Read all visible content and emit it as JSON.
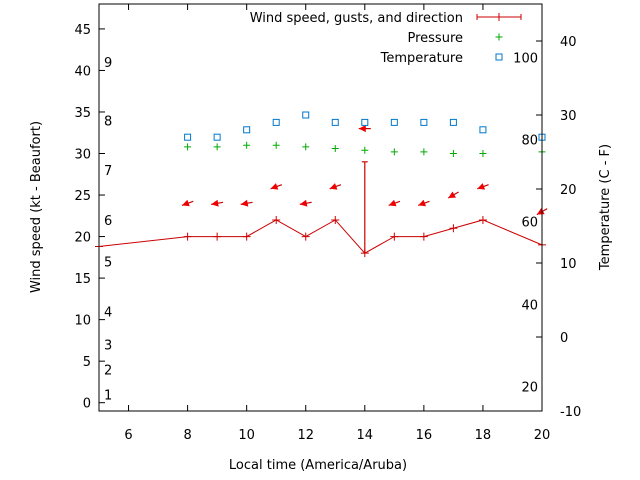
{
  "chart_data": {
    "type": "line",
    "xlabel": "Local time (America/Aruba)",
    "ylabel_left": "Wind speed (kt - Beaufort)",
    "ylabel_right": "Temperature (C - F)",
    "xlim": [
      5,
      20
    ],
    "ylim": [
      -1,
      48
    ],
    "x_ticks": [
      6,
      8,
      10,
      12,
      14,
      16,
      18,
      20
    ],
    "y_ticks": [
      0,
      5,
      10,
      15,
      20,
      25,
      30,
      35,
      40,
      45
    ],
    "y2_range_c": [
      -10,
      45
    ],
    "y2_ticks_c": [
      -10,
      0,
      10,
      20,
      30,
      40
    ],
    "beaufort_labels": [
      {
        "label": "1",
        "kt": 1
      },
      {
        "label": "2",
        "kt": 4
      },
      {
        "label": "3",
        "kt": 7
      },
      {
        "label": "4",
        "kt": 11
      },
      {
        "label": "5",
        "kt": 17
      },
      {
        "label": "6",
        "kt": 22
      },
      {
        "label": "7",
        "kt": 28
      },
      {
        "label": "8",
        "kt": 34
      },
      {
        "label": "9",
        "kt": 41
      }
    ],
    "fahrenheit_labels": [
      {
        "label": "20",
        "c": -6.7
      },
      {
        "label": "40",
        "c": 4.4
      },
      {
        "label": "60",
        "c": 15.6
      },
      {
        "label": "80",
        "c": 26.7
      },
      {
        "label": "100",
        "c": 37.8
      }
    ],
    "legend": [
      {
        "name": "Wind speed, gusts, and direction",
        "color": "#cc0000",
        "symbol": "errorline"
      },
      {
        "name": "Pressure",
        "color": "#00aa00",
        "symbol": "plus"
      },
      {
        "name": "Temperature",
        "color": "#0077cc",
        "symbol": "square"
      }
    ],
    "wind": {
      "x": [
        5,
        8,
        9,
        10,
        11,
        12,
        13,
        14,
        15,
        16,
        17,
        18,
        20
      ],
      "y": [
        18.8,
        20,
        20,
        20,
        22,
        20,
        22,
        18,
        20,
        20,
        21,
        22,
        19
      ]
    },
    "gusts": [
      {
        "x": 14,
        "low": 18,
        "high": 29
      }
    ],
    "direction_arrows": [
      {
        "x": 8,
        "y": 24,
        "from_deg": 70
      },
      {
        "x": 9,
        "y": 24,
        "from_deg": 80
      },
      {
        "x": 10,
        "y": 24,
        "from_deg": 80
      },
      {
        "x": 11,
        "y": 26,
        "from_deg": 70
      },
      {
        "x": 12,
        "y": 24,
        "from_deg": 80
      },
      {
        "x": 13,
        "y": 26,
        "from_deg": 70
      },
      {
        "x": 14,
        "y": 33,
        "from_deg": 90
      },
      {
        "x": 15,
        "y": 24,
        "from_deg": 70
      },
      {
        "x": 16,
        "y": 24,
        "from_deg": 70
      },
      {
        "x": 17,
        "y": 25,
        "from_deg": 60
      },
      {
        "x": 18,
        "y": 26,
        "from_deg": 70
      },
      {
        "x": 20,
        "y": 23,
        "from_deg": 60
      }
    ],
    "pressure": {
      "x": [
        8,
        9,
        10,
        11,
        12,
        13,
        14,
        15,
        16,
        17,
        18,
        20
      ],
      "y": [
        30.8,
        30.8,
        31,
        31,
        30.8,
        30.6,
        30.4,
        30.2,
        30.2,
        30,
        30,
        30.2
      ]
    },
    "temperature": {
      "x": [
        8,
        9,
        10,
        11,
        12,
        13,
        14,
        15,
        16,
        17,
        18,
        20
      ],
      "y": [
        27,
        27,
        28,
        29,
        30,
        29,
        29,
        29,
        29,
        29,
        28,
        27
      ]
    }
  }
}
